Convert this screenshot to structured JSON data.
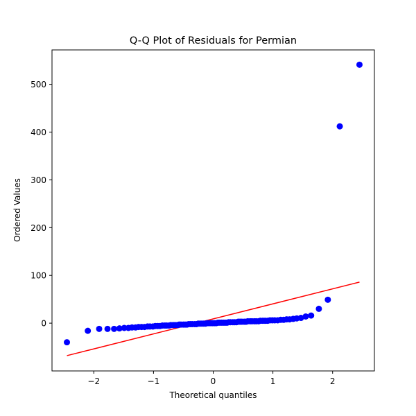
{
  "chart_data": {
    "type": "scatter",
    "title": "Q-Q Plot of Residuals for Permian",
    "xlabel": "Theoretical quantiles",
    "ylabel": "Ordered Values",
    "xlim": [
      -2.7,
      2.7
    ],
    "ylim": [
      -100,
      572
    ],
    "xticks": [
      -2,
      -1,
      0,
      1,
      2
    ],
    "xtick_labels": [
      "−2",
      "−1",
      "0",
      "1",
      "2"
    ],
    "yticks": [
      0,
      100,
      200,
      300,
      400,
      500
    ],
    "ytick_labels": [
      "0",
      "100",
      "200",
      "300",
      "400",
      "500"
    ],
    "grid": false,
    "colors": {
      "points": "#0000ff",
      "fit_line": "#ff0000"
    },
    "series": [
      {
        "kind": "points",
        "x": [
          -2.45,
          -2.1,
          -1.91,
          -1.77,
          -1.66,
          -1.57,
          -1.49,
          -1.42,
          -1.36,
          -1.3,
          -1.25,
          -1.2,
          -1.15,
          -1.1,
          -1.06,
          -1.01,
          -0.97,
          -0.93,
          -0.89,
          -0.85,
          -0.81,
          -0.78,
          -0.74,
          -0.71,
          -0.67,
          -0.64,
          -0.6,
          -0.57,
          -0.54,
          -0.5,
          -0.47,
          -0.44,
          -0.41,
          -0.38,
          -0.35,
          -0.31,
          -0.28,
          -0.25,
          -0.22,
          -0.19,
          -0.16,
          -0.13,
          -0.1,
          -0.07,
          -0.04,
          -0.01,
          0.02,
          0.05,
          0.08,
          0.11,
          0.14,
          0.17,
          0.2,
          0.23,
          0.26,
          0.29,
          0.33,
          0.36,
          0.39,
          0.42,
          0.45,
          0.48,
          0.52,
          0.55,
          0.58,
          0.62,
          0.65,
          0.69,
          0.72,
          0.76,
          0.79,
          0.83,
          0.87,
          0.91,
          0.95,
          0.99,
          1.03,
          1.08,
          1.13,
          1.18,
          1.23,
          1.28,
          1.34,
          1.4,
          1.47,
          1.55,
          1.64,
          1.77,
          1.92,
          2.12,
          2.45
        ],
        "y": [
          -40,
          -16,
          -12,
          -12,
          -12,
          -11,
          -10,
          -10,
          -9,
          -9,
          -8,
          -8,
          -8,
          -7,
          -7,
          -7,
          -6,
          -6,
          -6,
          -5,
          -5,
          -5,
          -5,
          -4,
          -4,
          -4,
          -4,
          -3,
          -3,
          -3,
          -3,
          -3,
          -2,
          -2,
          -2,
          -2,
          -2,
          -1,
          -1,
          -1,
          -1,
          -1,
          0,
          0,
          0,
          0,
          0,
          0,
          1,
          1,
          1,
          1,
          1,
          1,
          2,
          2,
          2,
          2,
          2,
          3,
          3,
          3,
          3,
          3,
          4,
          4,
          4,
          4,
          4,
          4,
          5,
          5,
          5,
          5,
          6,
          6,
          6,
          6,
          7,
          7,
          8,
          8,
          9,
          10,
          11,
          14,
          16,
          30,
          49,
          412,
          541
        ]
      },
      {
        "kind": "line",
        "x": [
          -2.45,
          2.45
        ],
        "y": [
          -68,
          86
        ]
      }
    ]
  }
}
